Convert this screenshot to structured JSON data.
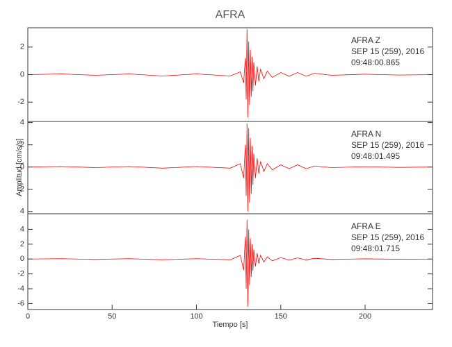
{
  "chart_data": [
    {
      "type": "line",
      "title": "AFRA",
      "color": "#ff0000",
      "annotations": [
        "AFRA   Z",
        "SEP 15 (259), 2016",
        "09:48:00.865"
      ],
      "xlim": [
        0,
        240
      ],
      "ylim": [
        -3.4,
        3.4
      ],
      "yticks": [
        -2,
        0,
        2
      ],
      "x": [
        0,
        20,
        40,
        60,
        80,
        100,
        120,
        126,
        128,
        129,
        129.5,
        130,
        130.5,
        131,
        131.5,
        132,
        132.5,
        133,
        133.5,
        134,
        135,
        136,
        137,
        138,
        140,
        142,
        145,
        150,
        155,
        160,
        165,
        170,
        180,
        200,
        220,
        240
      ],
      "values": [
        0,
        0.05,
        -0.05,
        0.05,
        -0.1,
        0.05,
        -0.1,
        0.2,
        -0.6,
        1.2,
        -1.8,
        3.3,
        -3.1,
        2.4,
        -2.2,
        1.8,
        -1.6,
        1.3,
        -1.2,
        0.9,
        -0.8,
        0.6,
        -0.5,
        0.4,
        -0.3,
        0.25,
        -0.2,
        0.15,
        -0.12,
        0.15,
        -0.12,
        0.1,
        -0.05,
        0.03,
        -0.03,
        0
      ]
    },
    {
      "type": "line",
      "ylabel": "Amplitud [cm/s/s]",
      "color": "#ff0000",
      "annotations": [
        "AFRA   N",
        "SEP 15 (259), 2016",
        "09:48:01.495"
      ],
      "xlim": [
        0,
        240
      ],
      "ylim": [
        -4.2,
        4.1
      ],
      "yticks": [
        {
          "value": -4,
          "label": "4"
        },
        {
          "value": -2,
          "label": "2"
        },
        0,
        2,
        4
      ],
      "x": [
        0,
        20,
        40,
        60,
        80,
        100,
        120,
        126,
        128,
        129,
        129.5,
        130,
        130.5,
        131,
        131.5,
        132,
        132.5,
        133,
        133.5,
        134,
        135,
        136,
        137,
        138,
        140,
        142,
        145,
        150,
        155,
        160,
        165,
        170,
        180,
        200,
        220,
        240
      ],
      "values": [
        0,
        0.05,
        -0.05,
        0.05,
        -0.1,
        0.05,
        -0.1,
        0.3,
        -1.0,
        2.0,
        -2.6,
        3.9,
        -4.0,
        3.5,
        -3.2,
        2.6,
        -2.4,
        1.9,
        -1.6,
        1.2,
        -1.0,
        0.8,
        -0.6,
        0.5,
        -0.4,
        0.3,
        -0.25,
        0.2,
        -0.15,
        0.2,
        -0.15,
        0.1,
        -0.05,
        0.03,
        -0.03,
        0
      ]
    },
    {
      "type": "line",
      "xlabel": "Tiempo [s]",
      "color": "#ff0000",
      "annotations": [
        "AFRA   E",
        "SEP 15 (259), 2016",
        "09:48:01.715"
      ],
      "xlim": [
        0,
        240
      ],
      "xticks": [
        0,
        50,
        100,
        150,
        200
      ],
      "ylim": [
        -6.8,
        6.1
      ],
      "yticks": [
        -6,
        -4,
        -2,
        0,
        2,
        4
      ],
      "x": [
        0,
        20,
        40,
        60,
        80,
        100,
        120,
        126,
        128,
        129,
        129.5,
        130,
        130.5,
        131,
        131.5,
        132,
        132.5,
        133,
        133.5,
        134,
        135,
        136,
        137,
        138,
        140,
        142,
        145,
        150,
        155,
        160,
        165,
        170,
        180,
        200,
        220,
        240
      ],
      "values": [
        0,
        0.05,
        -0.05,
        0.05,
        -0.1,
        0.05,
        -0.1,
        0.5,
        -1.5,
        3.0,
        -4.0,
        5.3,
        -6.4,
        4.0,
        -3.5,
        2.8,
        -2.4,
        2.0,
        -1.6,
        1.3,
        -1.0,
        0.8,
        -0.6,
        0.5,
        -0.4,
        0.3,
        -0.25,
        0.2,
        -0.15,
        0.15,
        -0.12,
        0.1,
        -0.05,
        0.03,
        -0.03,
        0
      ]
    }
  ]
}
